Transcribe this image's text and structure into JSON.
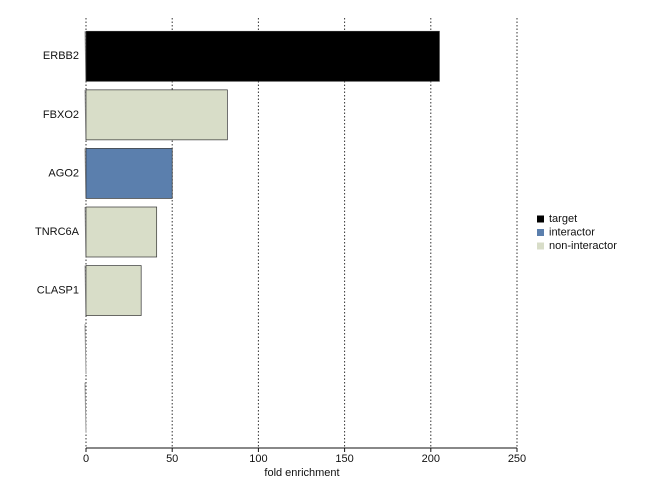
{
  "chart_data": {
    "type": "barh",
    "xlabel": "fold enrichment",
    "categories": [
      "ERBB2",
      "FBXO2",
      "AGO2",
      "TNRC6A",
      "CLASP1",
      null,
      null
    ],
    "values": [
      205,
      82,
      50,
      41,
      32,
      null,
      null
    ],
    "colors": [
      "#000000",
      "#d8ddc8",
      "#5b7fad",
      "#d8ddc8",
      "#d8ddc8",
      null,
      null
    ],
    "xlim": [
      0,
      250
    ],
    "xticks": [
      0,
      50,
      100,
      150,
      200,
      250
    ],
    "grid": true,
    "legend": [
      {
        "name": "target",
        "color": "#000000"
      },
      {
        "name": "interactor",
        "color": "#5b7fad"
      },
      {
        "name": "non-interactor",
        "color": "#d8ddc8"
      }
    ],
    "legend_position": "right"
  }
}
